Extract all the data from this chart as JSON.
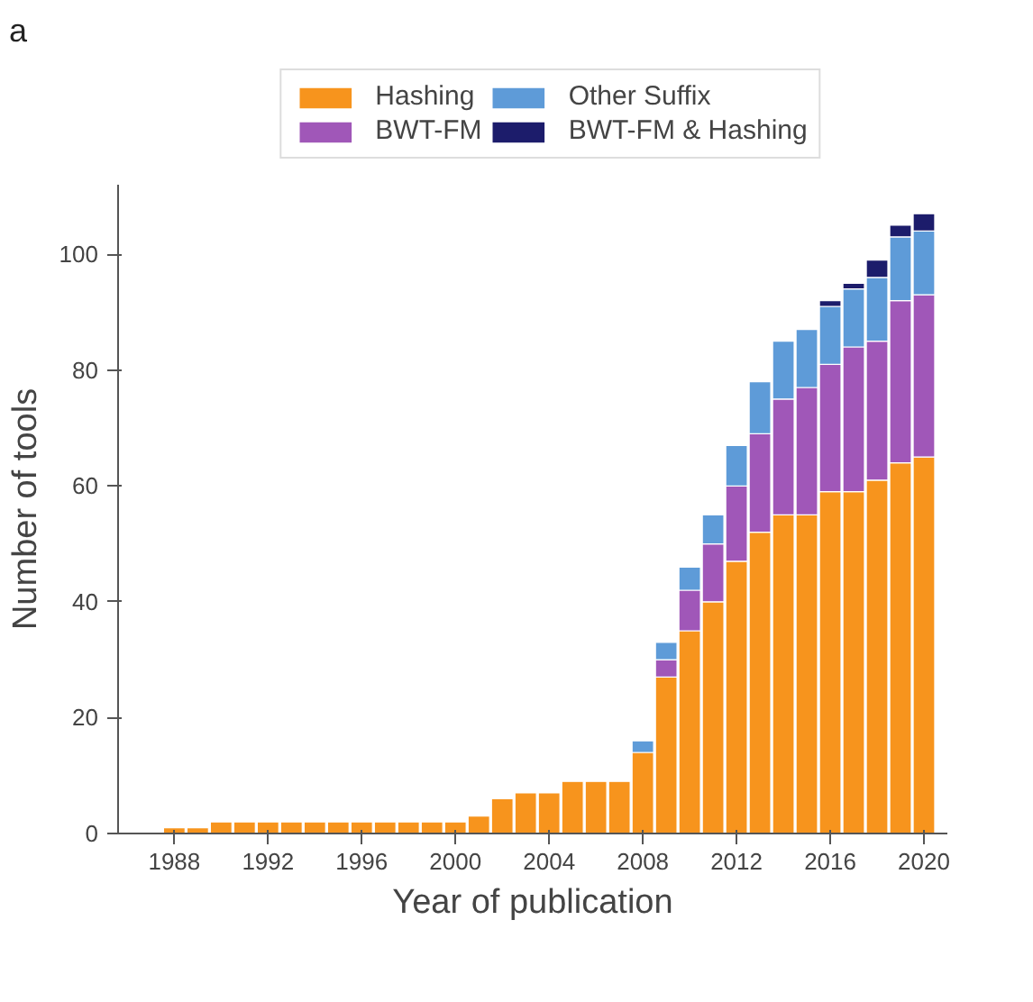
{
  "chart_data": {
    "type": "bar",
    "stacked": true,
    "xlabel": "Year of publication",
    "ylabel": "Number of tools",
    "annotations": [
      "a"
    ],
    "x": [
      1988,
      1989,
      1990,
      1991,
      1992,
      1993,
      1994,
      1995,
      1996,
      1997,
      1998,
      1999,
      2000,
      2001,
      2002,
      2003,
      2004,
      2005,
      2006,
      2007,
      2008,
      2009,
      2010,
      2011,
      2012,
      2013,
      2014,
      2015,
      2016,
      2017,
      2018,
      2019,
      2020
    ],
    "series": [
      {
        "name": "Hashing",
        "color": "#f7941d",
        "values": [
          1,
          1,
          2,
          2,
          2,
          2,
          2,
          2,
          2,
          2,
          2,
          2,
          2,
          3,
          6,
          7,
          7,
          9,
          9,
          9,
          14,
          27,
          35,
          40,
          47,
          52,
          55,
          55,
          59,
          59,
          61,
          64,
          65
        ]
      },
      {
        "name": "BWT-FM",
        "color": "#a057b8",
        "values": [
          0,
          0,
          0,
          0,
          0,
          0,
          0,
          0,
          0,
          0,
          0,
          0,
          0,
          0,
          0,
          0,
          0,
          0,
          0,
          0,
          0,
          3,
          7,
          10,
          13,
          17,
          20,
          22,
          22,
          25,
          24,
          28,
          28
        ]
      },
      {
        "name": "Other Suffix",
        "color": "#5e9bd8",
        "values": [
          0,
          0,
          0,
          0,
          0,
          0,
          0,
          0,
          0,
          0,
          0,
          0,
          0,
          0,
          0,
          0,
          0,
          0,
          0,
          0,
          2,
          3,
          4,
          5,
          7,
          9,
          10,
          10,
          10,
          10,
          11,
          11,
          11
        ]
      },
      {
        "name": "BWT-FM & Hashing",
        "color": "#1c1c6b",
        "values": [
          0,
          0,
          0,
          0,
          0,
          0,
          0,
          0,
          0,
          0,
          0,
          0,
          0,
          0,
          0,
          0,
          0,
          0,
          0,
          0,
          0,
          0,
          0,
          0,
          0,
          0,
          0,
          0,
          1,
          1,
          3,
          2,
          3
        ]
      }
    ],
    "xlim": [
      1985.6,
      2021
    ],
    "xticks": [
      1988,
      1992,
      1996,
      2000,
      2004,
      2008,
      2012,
      2016,
      2020
    ],
    "ylim": [
      0,
      112
    ],
    "yticks": [
      0,
      20,
      40,
      60,
      80,
      100
    ],
    "grid": false,
    "legend": "top"
  }
}
